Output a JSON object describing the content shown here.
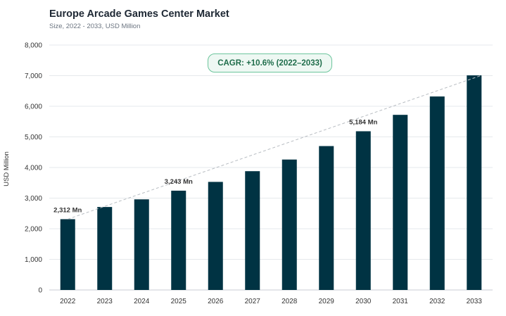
{
  "chart_data": {
    "type": "bar",
    "title": "Europe Arcade Games Center Market",
    "subtitle": "Size, 2022 - 2033, USD Million",
    "xlabel": "",
    "ylabel": "USD Million",
    "categories": [
      "2022",
      "2023",
      "2024",
      "2025",
      "2026",
      "2027",
      "2028",
      "2029",
      "2030",
      "2031",
      "2032",
      "2033"
    ],
    "values": [
      2312,
      2710,
      2960,
      3243,
      3530,
      3880,
      4260,
      4700,
      5184,
      5720,
      6320,
      7010
    ],
    "ylim": [
      0,
      8000
    ],
    "yticks": [
      "0",
      "1,000",
      "2,000",
      "3,000",
      "4,000",
      "5,000",
      "6,000",
      "7,000",
      "8,000"
    ],
    "data_labels": [
      {
        "index": 0,
        "text": "2,312 Mn"
      },
      {
        "index": 3,
        "text": "3,243 Mn"
      },
      {
        "index": 8,
        "text": "5,184 Mn"
      }
    ],
    "annotation": "CAGR: +10.6% (2022–2033)",
    "grid": true,
    "bar_color": "#003343",
    "trend_line": "dashed"
  }
}
